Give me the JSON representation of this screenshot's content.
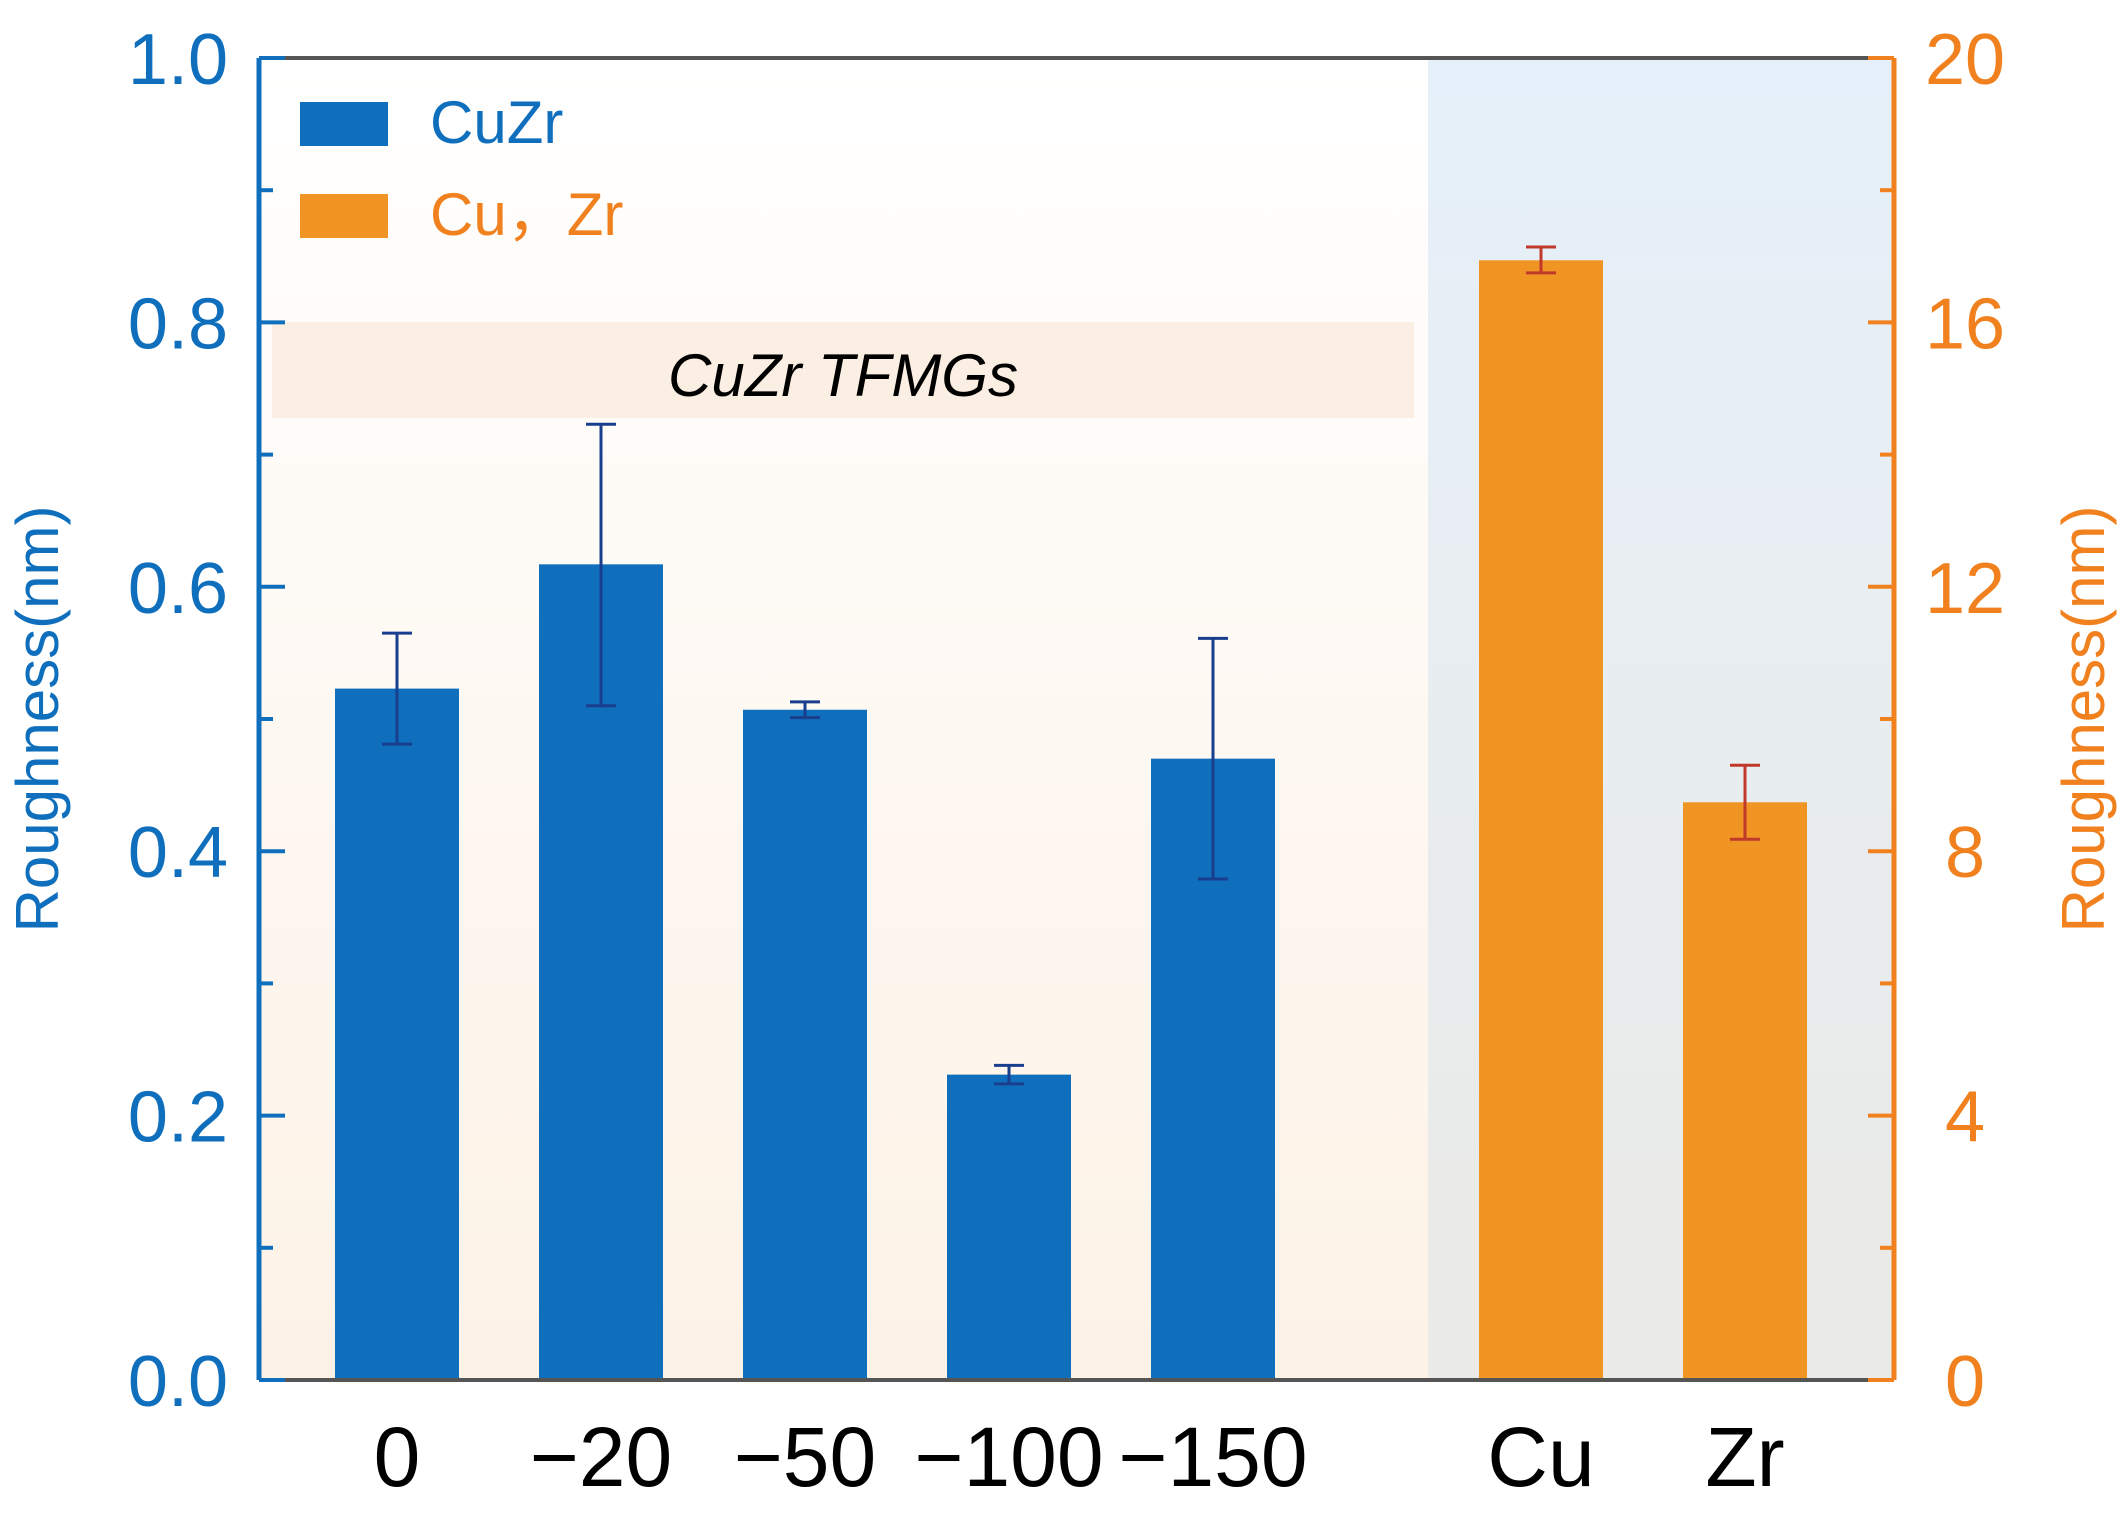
{
  "chart_data": {
    "type": "bar",
    "title": "",
    "xlabel": "",
    "colors": {
      "left_axis": "#0f6fbd",
      "right_axis": "#f0811e",
      "cuzr_bar": "#0f6fbd",
      "metal_bar": "#f09424",
      "error_cuzr": "#1a3e8e",
      "error_metal": "#c0392b",
      "annotation_box": "#fbeee2",
      "left_region_top": "#ffffff",
      "left_region_bottom": "#fdf2e6",
      "right_region_top": "#e6f0fa",
      "right_region_bottom": "#eaeae6"
    },
    "left_axis": {
      "label": "Roughness(nm)",
      "ylim": [
        0,
        1.0
      ],
      "ticks": [
        "0.0",
        "0.2",
        "0.4",
        "0.6",
        "0.8",
        "1.0"
      ],
      "tick_values": [
        0,
        0.2,
        0.4,
        0.6,
        0.8,
        1.0
      ]
    },
    "right_axis": {
      "label": "Roughness(nm)",
      "ylim": [
        0,
        20
      ],
      "ticks": [
        "0",
        "4",
        "8",
        "12",
        "16",
        "20"
      ],
      "tick_values": [
        0,
        4,
        8,
        12,
        16,
        20
      ]
    },
    "legend": [
      {
        "label": "CuZr",
        "color": "#0f6fbd"
      },
      {
        "label": "Cu，Zr",
        "color": "#f09424"
      }
    ],
    "annotation": "CuZr TFMGs",
    "series": [
      {
        "name": "CuZr",
        "axis": "left",
        "categories": [
          "0",
          "−20",
          "−50",
          "−100",
          "−150"
        ],
        "values": [
          0.523,
          0.617,
          0.507,
          0.231,
          0.47
        ],
        "error_low": [
          0.481,
          0.51,
          0.501,
          0.224,
          0.379
        ],
        "error_high": [
          0.565,
          0.723,
          0.513,
          0.238,
          0.561
        ]
      },
      {
        "name": "Cu，Zr",
        "axis": "right",
        "categories": [
          "Cu",
          "Zr"
        ],
        "values": [
          16.94,
          8.74
        ],
        "error_low": [
          16.75,
          8.18
        ],
        "error_high": [
          17.14,
          9.3
        ]
      }
    ]
  }
}
